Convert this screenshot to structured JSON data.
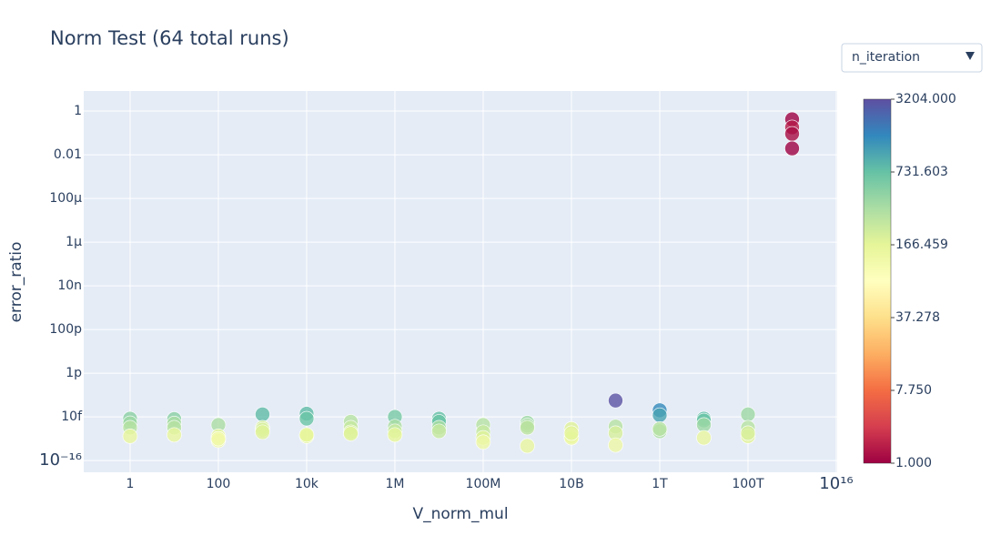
{
  "chart_data": {
    "type": "scatter",
    "title": "Norm Test (64 total runs)",
    "x_label": "V_norm_mul",
    "y_label": "error_ratio",
    "dropdown": "n_iteration",
    "log_x": true,
    "log_y": true,
    "grid": true,
    "xlim": [
      0.089,
      1.05e+16
    ],
    "ylim": [
      2.9e-17,
      8.3
    ],
    "xticks": [
      1,
      100,
      {
        "value": 10000.0,
        "label": "10k"
      },
      {
        "value": 1000000.0,
        "label": "1M"
      },
      {
        "value": 100000000.0,
        "label": "100M"
      },
      {
        "value": 10000000000.0,
        "label": "10B"
      },
      {
        "value": 1000000000000.0,
        "label": "1T"
      },
      {
        "value": 100000000000000.0,
        "label": "100T"
      },
      {
        "value": 1e+16,
        "label": "10¹⁶"
      }
    ],
    "yticks": [
      1,
      0.01,
      {
        "value": 0.0001,
        "label": "100μ"
      },
      {
        "value": 1e-06,
        "label": "1μ"
      },
      {
        "value": 1e-08,
        "label": "10n"
      },
      {
        "value": 1e-10,
        "label": "100p"
      },
      {
        "value": 1e-12,
        "label": "1p"
      },
      {
        "value": 1e-14,
        "label": "10f"
      },
      {
        "value": 1e-16,
        "label": "10⁻¹⁶"
      }
    ],
    "colorscale": [
      "#9e0142",
      "#d53e4f",
      "#f46d43",
      "#fdae61",
      "#fee08b",
      "#ffffbf",
      "#e6f598",
      "#abdda4",
      "#66c2a5",
      "#3288bd",
      "#5e4fa2"
    ],
    "colorbar_ticks": [
      {
        "value": 1,
        "label": "1.000"
      },
      {
        "value": 7.75,
        "label": "7.750"
      },
      {
        "value": 37.278,
        "label": "37.278"
      },
      {
        "value": 166.459,
        "label": "166.459"
      },
      {
        "value": 731.603,
        "label": "731.603"
      },
      {
        "value": 3204,
        "label": "3204.000"
      }
    ],
    "x": [
      1,
      1,
      1,
      1,
      10,
      10,
      10,
      10,
      100,
      100,
      100,
      100,
      1000,
      1000,
      1000,
      1000,
      10000.0,
      10000.0,
      10000.0,
      10000.0,
      100000.0,
      100000.0,
      100000.0,
      100000.0,
      1000000.0,
      1000000.0,
      1000000.0,
      1000000.0,
      10000000.0,
      10000000.0,
      10000000.0,
      10000000.0,
      100000000.0,
      100000000.0,
      100000000.0,
      100000000.0,
      1000000000.0,
      1000000000.0,
      1000000000.0,
      1000000000.0,
      10000000000.0,
      10000000000.0,
      10000000000.0,
      10000000000.0,
      100000000000.0,
      100000000000.0,
      100000000000.0,
      100000000000.0,
      1000000000000.0,
      1000000000000.0,
      1000000000000.0,
      1000000000000.0,
      10000000000000.0,
      10000000000000.0,
      10000000000000.0,
      10000000000000.0,
      100000000000000.0,
      100000000000000.0,
      100000000000000.0,
      100000000000000.0,
      1000000000000000.0,
      1000000000000000.0,
      1000000000000000.0,
      1000000000000000.0
    ],
    "y": [
      8.3e-15,
      5.1e-15,
      3.2e-15,
      1.3e-15,
      8e-15,
      5e-15,
      3.2e-15,
      1.5e-15,
      4.3e-15,
      1.3e-15,
      8.3e-16,
      1e-15,
      1.3e-14,
      3.2e-15,
      2.6e-15,
      2e-15,
      1.4e-14,
      8.3e-15,
      1.3e-15,
      1.5e-15,
      6e-15,
      3.2e-15,
      2e-15,
      1.7e-15,
      1e-14,
      3.6e-15,
      2.2e-15,
      1.5e-15,
      8.3e-15,
      6e-15,
      3.2e-15,
      2.2e-15,
      4.3e-15,
      2e-15,
      1.1e-15,
      7e-16,
      5.4e-15,
      4e-15,
      3.2e-15,
      4.7e-16,
      2.8e-15,
      1.3e-15,
      1.1e-15,
      1.8e-15,
      5.6e-14,
      3.6e-15,
      1.8e-15,
      5.1e-16,
      2e-14,
      1.2e-14,
      2.2e-15,
      2.8e-15,
      8.3e-15,
      6.8e-15,
      4.3e-15,
      1.1e-15,
      1.3e-14,
      3.2e-15,
      1.3e-15,
      1.8e-15,
      0.42,
      0.18,
      0.091,
      0.0195
    ],
    "color_values": [
      500,
      400,
      300,
      150,
      500,
      350,
      300,
      150,
      350,
      150,
      130,
      120,
      800,
      200,
      200,
      180,
      800,
      700,
      170,
      160,
      300,
      250,
      200,
      180,
      600,
      350,
      250,
      160,
      750,
      700,
      350,
      250,
      300,
      250,
      180,
      130,
      400,
      350,
      280,
      150,
      180,
      150,
      140,
      170,
      3000,
      300,
      200,
      130,
      1500,
      1100,
      350,
      300,
      800,
      700,
      400,
      150,
      400,
      300,
      170,
      200,
      1,
      1.5,
      1.2,
      1
    ]
  }
}
